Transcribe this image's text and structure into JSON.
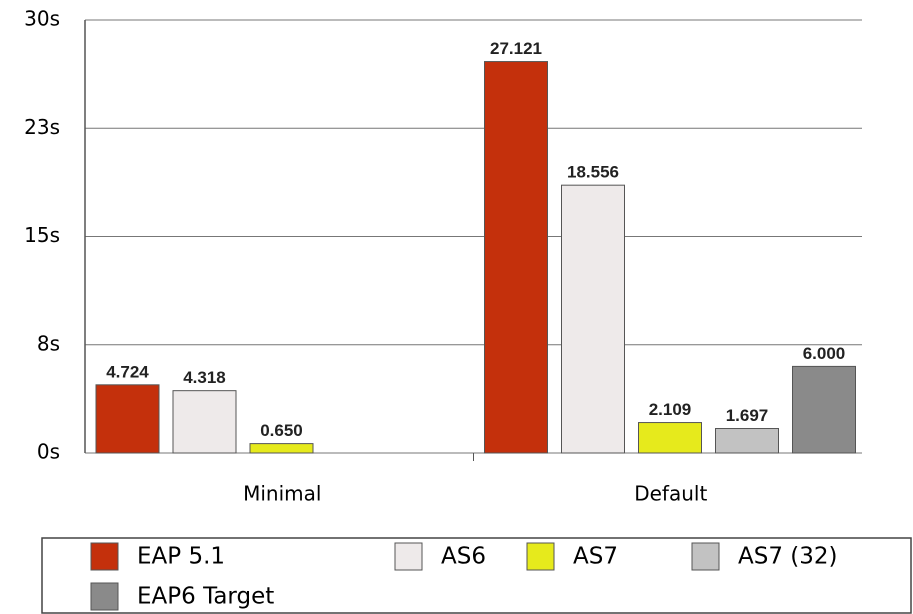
{
  "chart_data": {
    "type": "bar",
    "categories": [
      "Minimal",
      "Default"
    ],
    "series": [
      {
        "name": "EAP 5.1",
        "color": "#c4300c",
        "values": [
          4.724,
          27.121
        ]
      },
      {
        "name": "AS6",
        "color": "#eeeaea",
        "values": [
          4.318,
          18.556
        ]
      },
      {
        "name": "AS7",
        "color": "#e6ea1c",
        "values": [
          0.65,
          2.109
        ],
        "value_labels": [
          "0.650",
          "2.109"
        ]
      },
      {
        "name": "AS7 (32)",
        "color": "#c2c2c2",
        "values": [
          null,
          1.697
        ]
      },
      {
        "name": "EAP6 Target",
        "color": "#8a8a8a",
        "values": [
          null,
          6
        ],
        "value_labels": [
          null,
          "6.000"
        ]
      }
    ],
    "ylim": [
      0,
      30
    ],
    "yticks": [
      {
        "value": 0,
        "label": "0s"
      },
      {
        "value": 7.5,
        "label": "8s"
      },
      {
        "value": 15,
        "label": "15s"
      },
      {
        "value": 22.5,
        "label": "23s"
      },
      {
        "value": 30,
        "label": "30s"
      }
    ],
    "grid": true,
    "legend": "bottom"
  }
}
